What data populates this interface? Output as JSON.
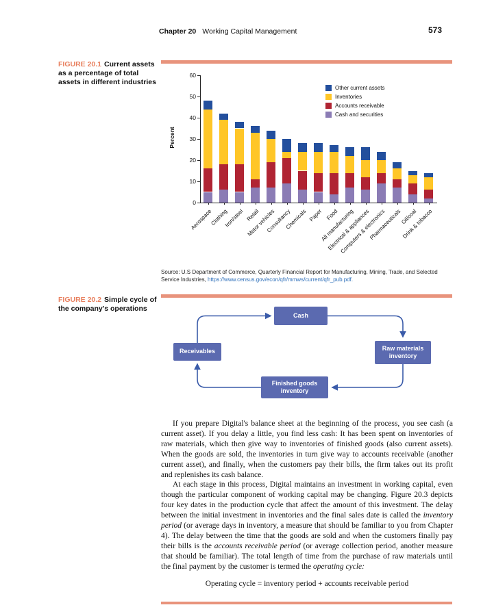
{
  "header": {
    "chapter": "Chapter 20",
    "title": "Working Capital Management",
    "page_number": "573"
  },
  "figure1": {
    "label": "FIGURE 20.1",
    "caption": "Current assets as a percentage of total assets in different industries",
    "source_segments": [
      {
        "t": "Source: U.S Department of Commerce, "
      },
      {
        "t": "Quarterly Financial Report for Manufacturing, Mining, Trade, and Selected Service Industries, ",
        "i": false
      },
      {
        "t": "https://www.census.gov/econ/qfr/mmws/current/qfr_pub.pdf.",
        "link": true
      }
    ]
  },
  "chart_data": {
    "type": "bar",
    "stacked": true,
    "title": "",
    "xlabel": "",
    "ylabel": "Percent",
    "ylim": [
      0,
      60
    ],
    "yticks": [
      0,
      10,
      20,
      30,
      40,
      50,
      60
    ],
    "grid": false,
    "legend_position": "top-right",
    "categories": [
      "Aerospace",
      "Clothing",
      "Iron/steel",
      "Retail",
      "Motor vehicles",
      "Consultancy",
      "Chemicals",
      "Paper",
      "Food",
      "All manufacturing",
      "Electrical & appliances",
      "Computers & electronics",
      "Pharmaceuticals",
      "Oil/coal",
      "Drink & tobacco"
    ],
    "series": [
      {
        "name": "Cash and securities",
        "color": "#8b7cb5",
        "values": [
          5,
          6,
          5,
          7,
          7,
          9,
          6,
          5,
          4,
          7,
          6,
          9,
          7,
          4,
          2
        ]
      },
      {
        "name": "Accounts receivable",
        "color": "#b02433",
        "values": [
          11,
          12,
          13,
          4,
          12,
          12,
          9,
          9,
          10,
          7,
          6,
          5,
          4,
          5,
          4
        ]
      },
      {
        "name": "Inventories",
        "color": "#ffc627",
        "values": [
          28,
          21,
          17,
          22,
          11,
          3,
          9,
          10,
          10,
          8,
          8,
          6,
          5,
          4,
          6
        ]
      },
      {
        "name": "Other current assets",
        "color": "#234f9d",
        "values": [
          4,
          3,
          3,
          3,
          4,
          6,
          4,
          4,
          3,
          4,
          6,
          4,
          3,
          2,
          2
        ]
      }
    ],
    "legend_order": [
      "Other current assets",
      "Inventories",
      "Accounts receivable",
      "Cash and securities"
    ]
  },
  "figure2": {
    "label": "FIGURE 20.2",
    "caption": "Simple cycle of the company's operations",
    "nodes": {
      "cash": "Cash",
      "raw": "Raw materials inventory",
      "receivables": "Receivables",
      "finished": "Finished goods inventory"
    }
  },
  "body": {
    "paragraph1": "If you prepare Digital's balance sheet at the beginning of the process, you see cash (a current asset). If you delay a little, you find less cash: It has been spent on inventories of raw materials, which then give way to inventories of finished goods (also current assets). When the goods are sold, the inventories in turn give way to accounts receivable (another current asset), and finally, when the customers pay their bills, the firm takes out its profit and replenishes its cash balance.",
    "paragraph2_segments": [
      {
        "t": "At each stage in this process, Digital maintains an investment in working capital, even though the particular component of working capital may be changing. Figure 20.3 depicts four key dates in the production cycle that affect the amount of this investment. The delay between the initial investment in inventories and the final sales date is called the "
      },
      {
        "t": "inventory period",
        "i": true
      },
      {
        "t": " (or average days in inventory, a measure that should be familiar to you from Chapter 4). The delay between the time that the goods are sold and when the customers finally pay their bills is the "
      },
      {
        "t": "accounts receivable period",
        "i": true
      },
      {
        "t": " (or average collection period, another measure that should be familiar). The total length of time from the purchase of raw materials until the final payment by the customer is termed the "
      },
      {
        "t": "operating cycle:",
        "i": true
      }
    ],
    "equation": "Operating cycle = inventory period + accounts receivable period"
  },
  "colors": {
    "accent_bar": "#e8937c",
    "figure_label": "#e8805f",
    "node_fill": "#5b6ab0",
    "arrow": "#3a5ba9",
    "link": "#2d6fba"
  }
}
